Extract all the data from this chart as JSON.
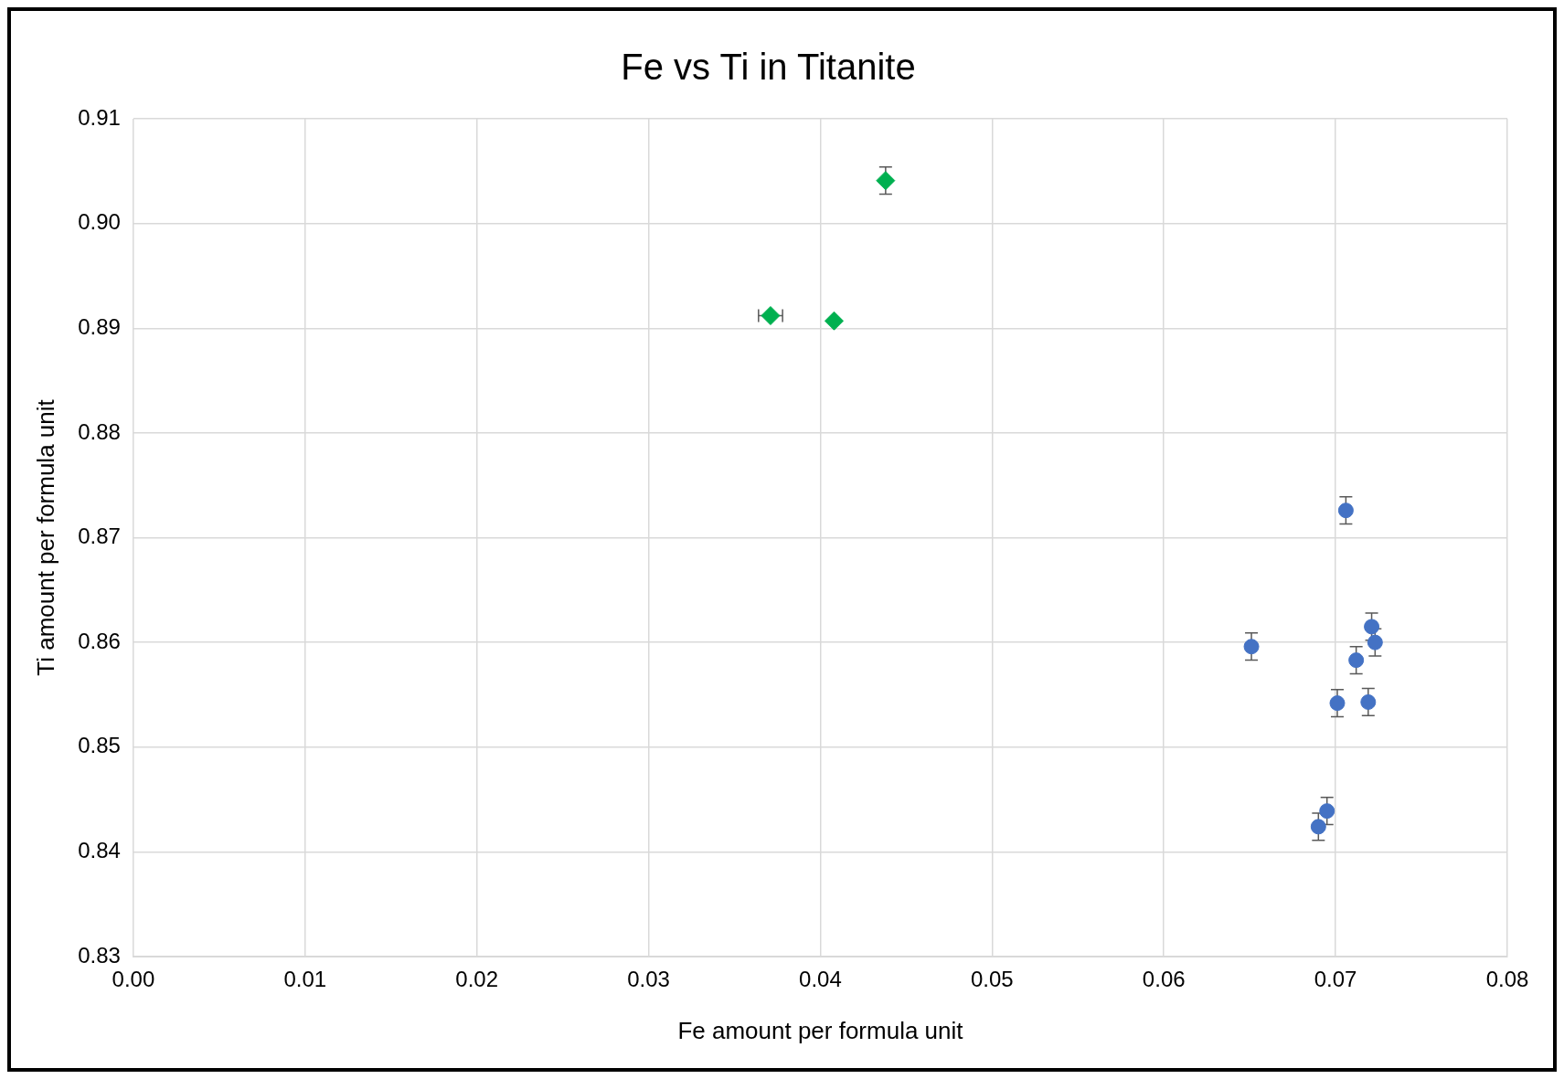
{
  "chart_data": {
    "type": "scatter",
    "title": "Fe vs Ti in Titanite",
    "xlabel": "Fe amount per formula unit",
    "ylabel": "Ti amount per formula unit",
    "xlim": [
      0,
      0.08
    ],
    "xticks": [
      {
        "value": 0,
        "label": "0.00"
      },
      {
        "value": 0.01,
        "label": "0.01"
      },
      {
        "value": 0.02,
        "label": "0.02"
      },
      {
        "value": 0.03,
        "label": "0.03"
      },
      {
        "value": 0.04,
        "label": "0.04"
      },
      {
        "value": 0.05,
        "label": "0.05"
      },
      {
        "value": 0.06,
        "label": "0.06"
      },
      {
        "value": 0.07,
        "label": "0.07"
      },
      {
        "value": 0.08,
        "label": "0.08"
      }
    ],
    "ylim": [
      0.83,
      0.91
    ],
    "yticks": [
      {
        "value": 0.83,
        "label": "0.83"
      },
      {
        "value": 0.84,
        "label": "0.84"
      },
      {
        "value": 0.85,
        "label": "0.85"
      },
      {
        "value": 0.86,
        "label": "0.86"
      },
      {
        "value": 0.87,
        "label": "0.87"
      },
      {
        "value": 0.88,
        "label": "0.88"
      },
      {
        "value": 0.89,
        "label": "0.89"
      },
      {
        "value": 0.9,
        "label": "0.90"
      },
      {
        "value": 0.91,
        "label": "0.91"
      }
    ],
    "grid": true,
    "legend": false,
    "series": [
      {
        "color": "#4472c4",
        "marker": "circle",
        "x": [
          0.0706,
          0.0651,
          0.0721,
          0.0723,
          0.0712,
          0.0701,
          0.0719,
          0.0695,
          0.069
        ],
        "values": [
          0.8726,
          0.8596,
          0.8615,
          0.86,
          0.8583,
          0.8542,
          0.8543,
          0.8439,
          0.8424
        ],
        "errors": [
          0.0013,
          0.0013,
          0.0013,
          0.0013,
          0.0013,
          0.0013,
          0.0013,
          0.0013,
          0.0013
        ]
      },
      {
        "color": "#00b050",
        "marker": "diamond",
        "x": [
          0.0438,
          0.0371,
          0.0408
        ],
        "values": [
          0.9041,
          0.8912,
          0.8907
        ],
        "errors": [
          0.0013,
          null,
          null
        ],
        "xerrors": [
          null,
          0.0007,
          null
        ]
      }
    ]
  }
}
